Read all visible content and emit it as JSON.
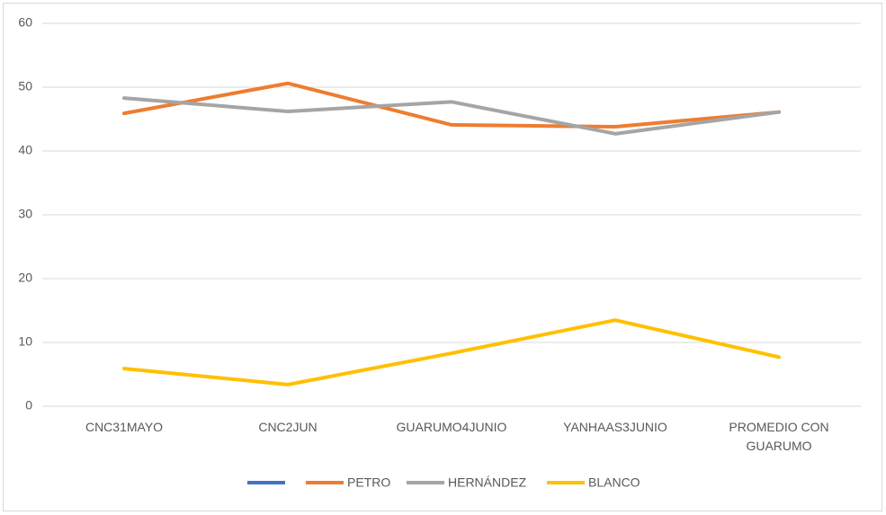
{
  "chart_data": {
    "type": "line",
    "categories": [
      "CNC31MAYO",
      "CNC2JUN",
      "GUARUMO4JUNIO",
      "YANHAAS3JUNIO",
      "PROMEDIO CON GUARUMO"
    ],
    "series": [
      {
        "name": null,
        "color": "#4472c4",
        "values": [
          null,
          null,
          null,
          null,
          null
        ]
      },
      {
        "name": "PETRO",
        "color": "#ed7d31",
        "values": [
          45.9,
          50.6,
          44.1,
          43.8,
          46.1
        ]
      },
      {
        "name": "HERNÁNDEZ",
        "color": "#a5a5a5",
        "values": [
          48.3,
          46.2,
          47.7,
          42.7,
          46.1
        ]
      },
      {
        "name": "BLANCO",
        "color": "#ffc000",
        "values": [
          5.9,
          3.4,
          8.3,
          13.5,
          7.7
        ]
      }
    ],
    "ylim": [
      0,
      60
    ],
    "yticks": [
      0,
      10,
      20,
      30,
      40,
      50,
      60
    ],
    "grid": true,
    "legend": "bottom"
  }
}
